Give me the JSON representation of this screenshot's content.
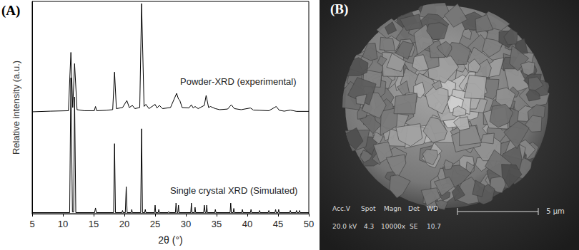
{
  "panel_label": "(A)",
  "chart_data": {
    "type": "line",
    "xlabel": "2θ (°)",
    "ylabel": "Relative intensity (a.u.)",
    "xlim": [
      5,
      50
    ],
    "xticks": [
      5,
      10,
      15,
      20,
      25,
      30,
      35,
      40,
      45,
      50
    ],
    "ylim": [
      0,
      100
    ],
    "tick_labels": "x",
    "grid": false,
    "annotations": [
      {
        "text": "Powder-XRD (experimental)"
      },
      {
        "text": "Single crystal XRD (Simulated)"
      }
    ],
    "series": [
      {
        "color": "#000000",
        "x": [
          5,
          8,
          10.9,
          11.3,
          11.6,
          11.9,
          12.3,
          13.5,
          15.1,
          15.3,
          15.5,
          17,
          18.1,
          18.4,
          18.7,
          19.7,
          20.4,
          20.8,
          21.3,
          21.7,
          22.5,
          22.8,
          23.2,
          23.5,
          24,
          25.0,
          25.3,
          25.7,
          26.2,
          27.5,
          28.5,
          28.8,
          29.0,
          29.4,
          30.5,
          30.9,
          31.2,
          31.5,
          32,
          33.0,
          33.3,
          33.7,
          34.0,
          34.8,
          35.5,
          36.8,
          37.4,
          37.9,
          39,
          40.5,
          41,
          42,
          43.5,
          44.7,
          45.2,
          46,
          47,
          48,
          50
        ],
        "values": [
          48,
          48.3,
          48.5,
          76,
          50,
          70.7,
          49,
          48.5,
          48.5,
          50.5,
          48.5,
          48.7,
          49,
          66.7,
          49.5,
          50,
          53.3,
          50,
          51,
          49.5,
          50,
          99,
          50.5,
          51.5,
          49.5,
          51.5,
          49.8,
          51,
          49.5,
          50,
          56.7,
          54,
          53.5,
          50,
          49.8,
          51.3,
          49.8,
          50.5,
          49.5,
          51,
          55.7,
          50,
          50.5,
          49.5,
          49,
          49.3,
          51.3,
          49.5,
          49,
          49.8,
          48.8,
          48.7,
          48.5,
          50.5,
          48.7,
          48.3,
          48.8,
          48.2,
          48.2
        ]
      },
      {
        "color": "#000000",
        "x": [
          5,
          11.1,
          11.3,
          11.55,
          11.75,
          11.9,
          12.1,
          15.15,
          15.3,
          15.45,
          18.25,
          18.4,
          18.55,
          19.6,
          19.7,
          19.8,
          20.15,
          20.3,
          20.45,
          21.1,
          21.2,
          21.3,
          22.65,
          22.8,
          22.95,
          23.3,
          23.4,
          23.5,
          24.9,
          25.0,
          25.1,
          25.5,
          25.6,
          25.7,
          27.1,
          27.2,
          27.3,
          28.3,
          28.4,
          28.55,
          28.7,
          28.8,
          28.9,
          30.8,
          30.9,
          31.0,
          31.4,
          31.5,
          31.6,
          32.9,
          33.0,
          33.15,
          33.3,
          33.4,
          33.5,
          34.7,
          34.8,
          34.9,
          37.2,
          37.3,
          37.4,
          37.7,
          37.8,
          37.9,
          39.1,
          39.2,
          39.3,
          40.5,
          40.6,
          40.7,
          41.9,
          42.0,
          42.1,
          43.4,
          43.5,
          43.6,
          44.5,
          44.6,
          44.7,
          45.0,
          45.1,
          45.2,
          46.9,
          47.0,
          47.1,
          47.9,
          48.0,
          48.1,
          48.4,
          48.5,
          48.6,
          50
        ],
        "values": [
          0.5,
          0.5,
          64,
          0.8,
          0.8,
          55,
          0.5,
          0.5,
          2.7,
          0.5,
          0.5,
          33,
          0.5,
          0.5,
          1.5,
          0.5,
          0.5,
          12.7,
          0.5,
          0.5,
          2,
          0.5,
          0.5,
          40,
          0.5,
          0.5,
          2,
          0.5,
          0.5,
          4,
          0.5,
          0.5,
          2,
          0.5,
          0.5,
          1,
          0.5,
          0.5,
          5,
          0.5,
          0.5,
          4,
          0.5,
          0.5,
          5,
          0.5,
          0.5,
          3,
          0.5,
          0.5,
          4,
          0.5,
          0.5,
          4,
          0.5,
          0.5,
          2,
          0.5,
          0.5,
          5,
          0.5,
          0.5,
          2.5,
          0.5,
          0.5,
          2,
          0.5,
          0.5,
          2,
          0.5,
          0.5,
          1.5,
          0.5,
          0.5,
          1.5,
          0.5,
          0.5,
          2,
          0.5,
          0.5,
          2,
          0.5,
          0.5,
          1.5,
          0.5,
          0.5,
          1.5,
          0.5,
          0.5,
          1.5,
          0.5,
          0.5
        ]
      }
    ]
  },
  "sem_image": {
    "panel_label": "(B)",
    "info_headers": [
      "Acc.V",
      "Spot",
      "Magn",
      "Det",
      "WD"
    ],
    "info_values": [
      "20.0 kV",
      "4.3",
      "10000x",
      "SE",
      "10.7"
    ],
    "scale_bar": "5 μm"
  }
}
